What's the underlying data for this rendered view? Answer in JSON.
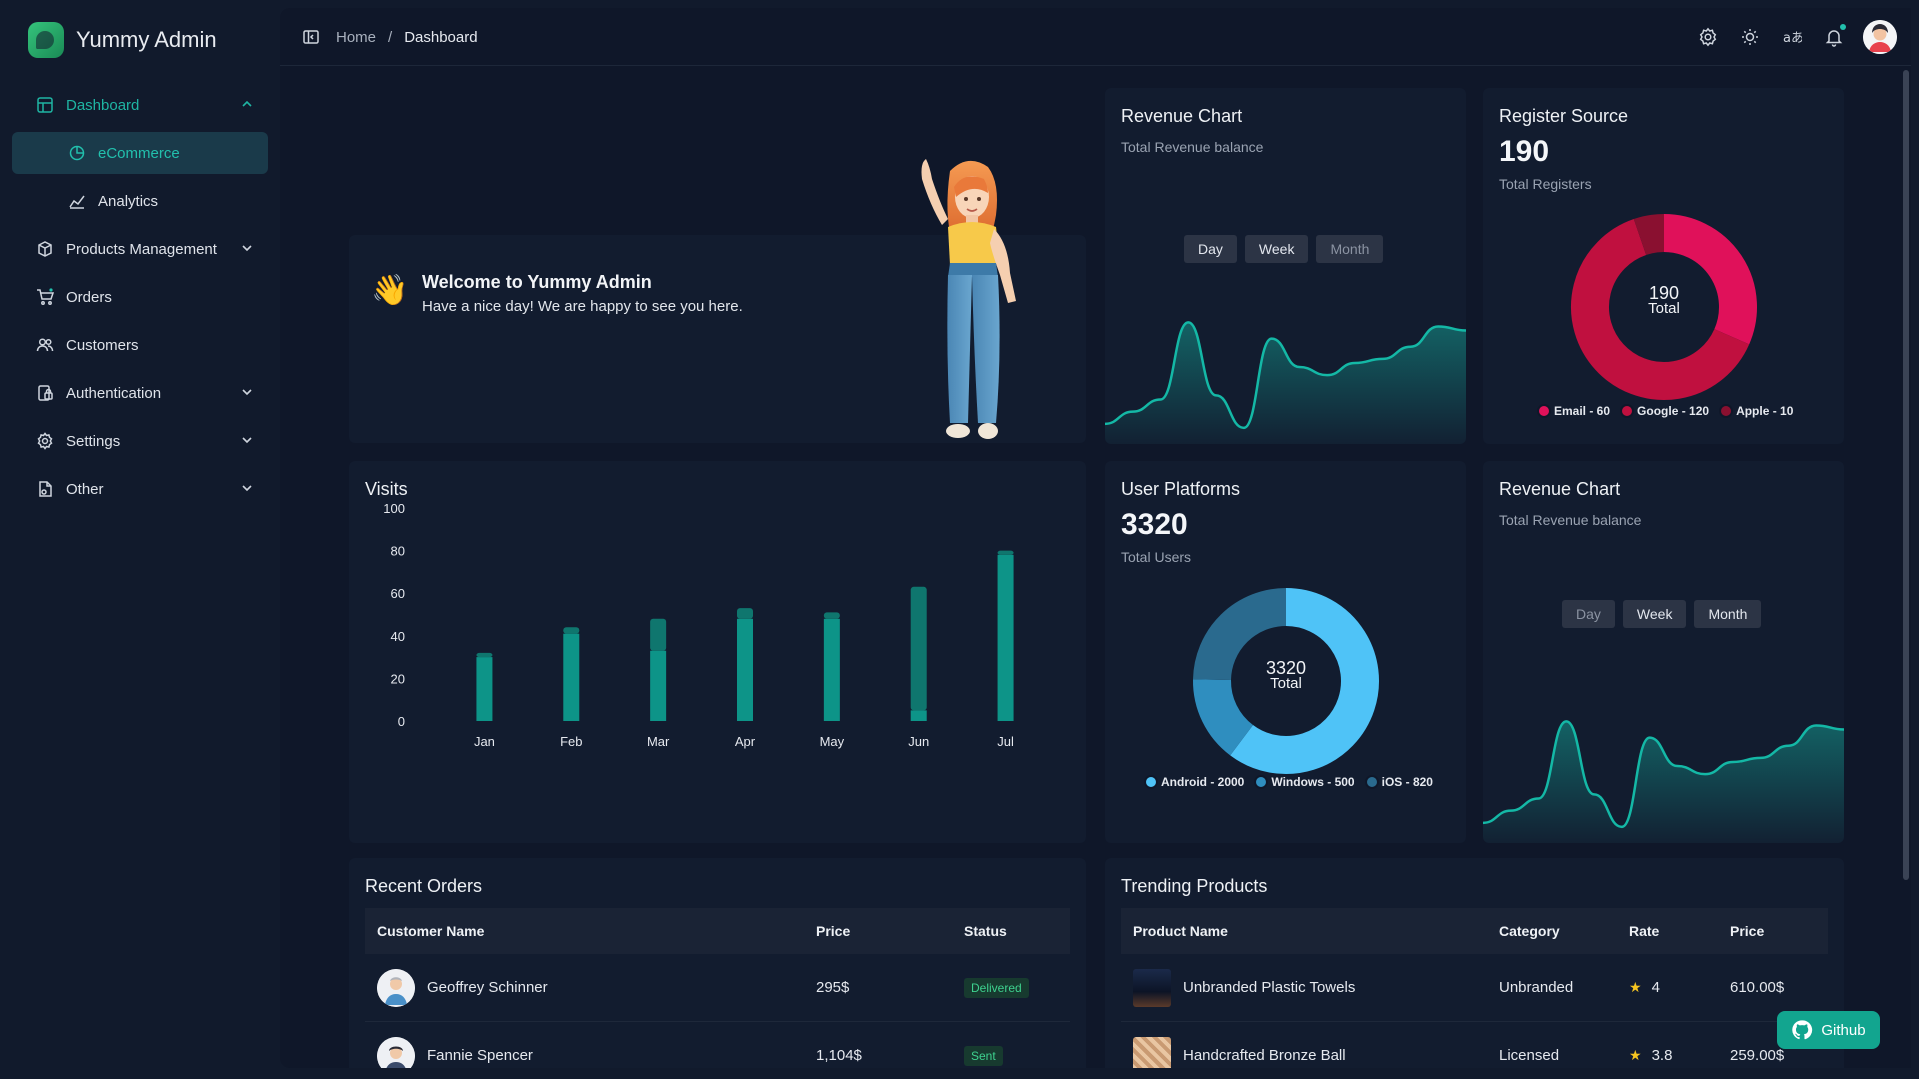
{
  "app": {
    "name": "Yummy Admin"
  },
  "sidebar": {
    "items": [
      {
        "label": "Dashboard",
        "icon": "dashboard-icon",
        "expanded": true
      },
      {
        "label": "eCommerce",
        "icon": "ecommerce-icon",
        "sub": true,
        "active": true
      },
      {
        "label": "Analytics",
        "icon": "analytics-icon",
        "sub": true
      },
      {
        "label": "Products Management",
        "icon": "products-icon",
        "chevron": true
      },
      {
        "label": "Orders",
        "icon": "cart-icon"
      },
      {
        "label": "Customers",
        "icon": "customers-icon"
      },
      {
        "label": "Authentication",
        "icon": "auth-icon",
        "chevron": true
      },
      {
        "label": "Settings",
        "icon": "gear-icon",
        "chevron": true
      },
      {
        "label": "Other",
        "icon": "other-icon",
        "chevron": true
      }
    ]
  },
  "breadcrumb": {
    "home": "Home",
    "separator": "/",
    "current": "Dashboard"
  },
  "welcome": {
    "title": "Welcome to Yummy Admin",
    "subtitle": "Have a nice day! We are happy to see you here."
  },
  "revenue_chart_1": {
    "title": "Revenue Chart",
    "subtitle": "Total Revenue balance",
    "buttons": [
      "Day",
      "Week",
      "Month"
    ]
  },
  "register_source": {
    "title": "Register Source",
    "total": "190",
    "total_label": "Total Registers",
    "center_value": "190",
    "center_label": "Total",
    "legend": [
      "Email - 60",
      "Google - 120",
      "Apple - 10"
    ],
    "colors": [
      "#e0115a",
      "#c0103f",
      "#8a1030"
    ]
  },
  "visits": {
    "title": "Visits"
  },
  "user_platforms": {
    "title": "User Platforms",
    "total": "3320",
    "total_label": "Total Users",
    "center_value": "3320",
    "center_label": "Total",
    "legend": [
      "Android - 2000",
      "Windows - 500",
      "iOS - 820"
    ],
    "colors": [
      "#4fc3f7",
      "#2f8ebf",
      "#2a6a8e"
    ]
  },
  "revenue_chart_2": {
    "title": "Revenue Chart",
    "subtitle": "Total Revenue balance",
    "buttons": [
      "Day",
      "Week",
      "Month"
    ]
  },
  "recent_orders": {
    "title": "Recent Orders",
    "columns": [
      "Customer Name",
      "Price",
      "Status"
    ],
    "rows": [
      {
        "name": "Geoffrey Schinner",
        "price": "295$",
        "status": "Delivered"
      },
      {
        "name": "Fannie Spencer",
        "price": "1,104$",
        "status": "Sent"
      }
    ]
  },
  "trending_products": {
    "title": "Trending Products",
    "columns": [
      "Product Name",
      "Category",
      "Rate",
      "Price"
    ],
    "rows": [
      {
        "name": "Unbranded Plastic Towels",
        "category": "Unbranded",
        "rate": "4",
        "price": "610.00$"
      },
      {
        "name": "Handcrafted Bronze Ball",
        "category": "Licensed",
        "rate": "3.8",
        "price": "259.00$"
      }
    ]
  },
  "github": {
    "label": "Github"
  },
  "chart_data": [
    {
      "type": "bar",
      "title": "Visits",
      "categories": [
        "Jan",
        "Feb",
        "Mar",
        "Apr",
        "May",
        "Jun",
        "Jul"
      ],
      "series": [
        {
          "values": [
            30,
            41,
            33,
            48,
            48,
            5,
            78
          ]
        },
        {
          "values": [
            2,
            3,
            15,
            5,
            3,
            58,
            2
          ]
        }
      ],
      "yticks": [
        "100",
        "80",
        "60",
        "40",
        "20",
        "0"
      ],
      "ylim": [
        0,
        100
      ],
      "colors": [
        "#0d9488",
        "#0f766e"
      ]
    },
    {
      "type": "area",
      "title": "Revenue Chart",
      "subtitle": "Total Revenue balance",
      "values": [
        3,
        6,
        9,
        28,
        10,
        2,
        24,
        17,
        15,
        18,
        19,
        22,
        27,
        26
      ],
      "ylim": [
        0,
        35
      ],
      "color": "#14b8a6"
    },
    {
      "type": "pie",
      "title": "Register Source",
      "labels": [
        "Email",
        "Google",
        "Apple"
      ],
      "values": [
        60,
        120,
        10
      ],
      "center": "190 Total"
    },
    {
      "type": "pie",
      "title": "User Platforms",
      "labels": [
        "Android",
        "Windows",
        "iOS"
      ],
      "values": [
        2000,
        500,
        820
      ],
      "center": "3320 Total"
    }
  ]
}
